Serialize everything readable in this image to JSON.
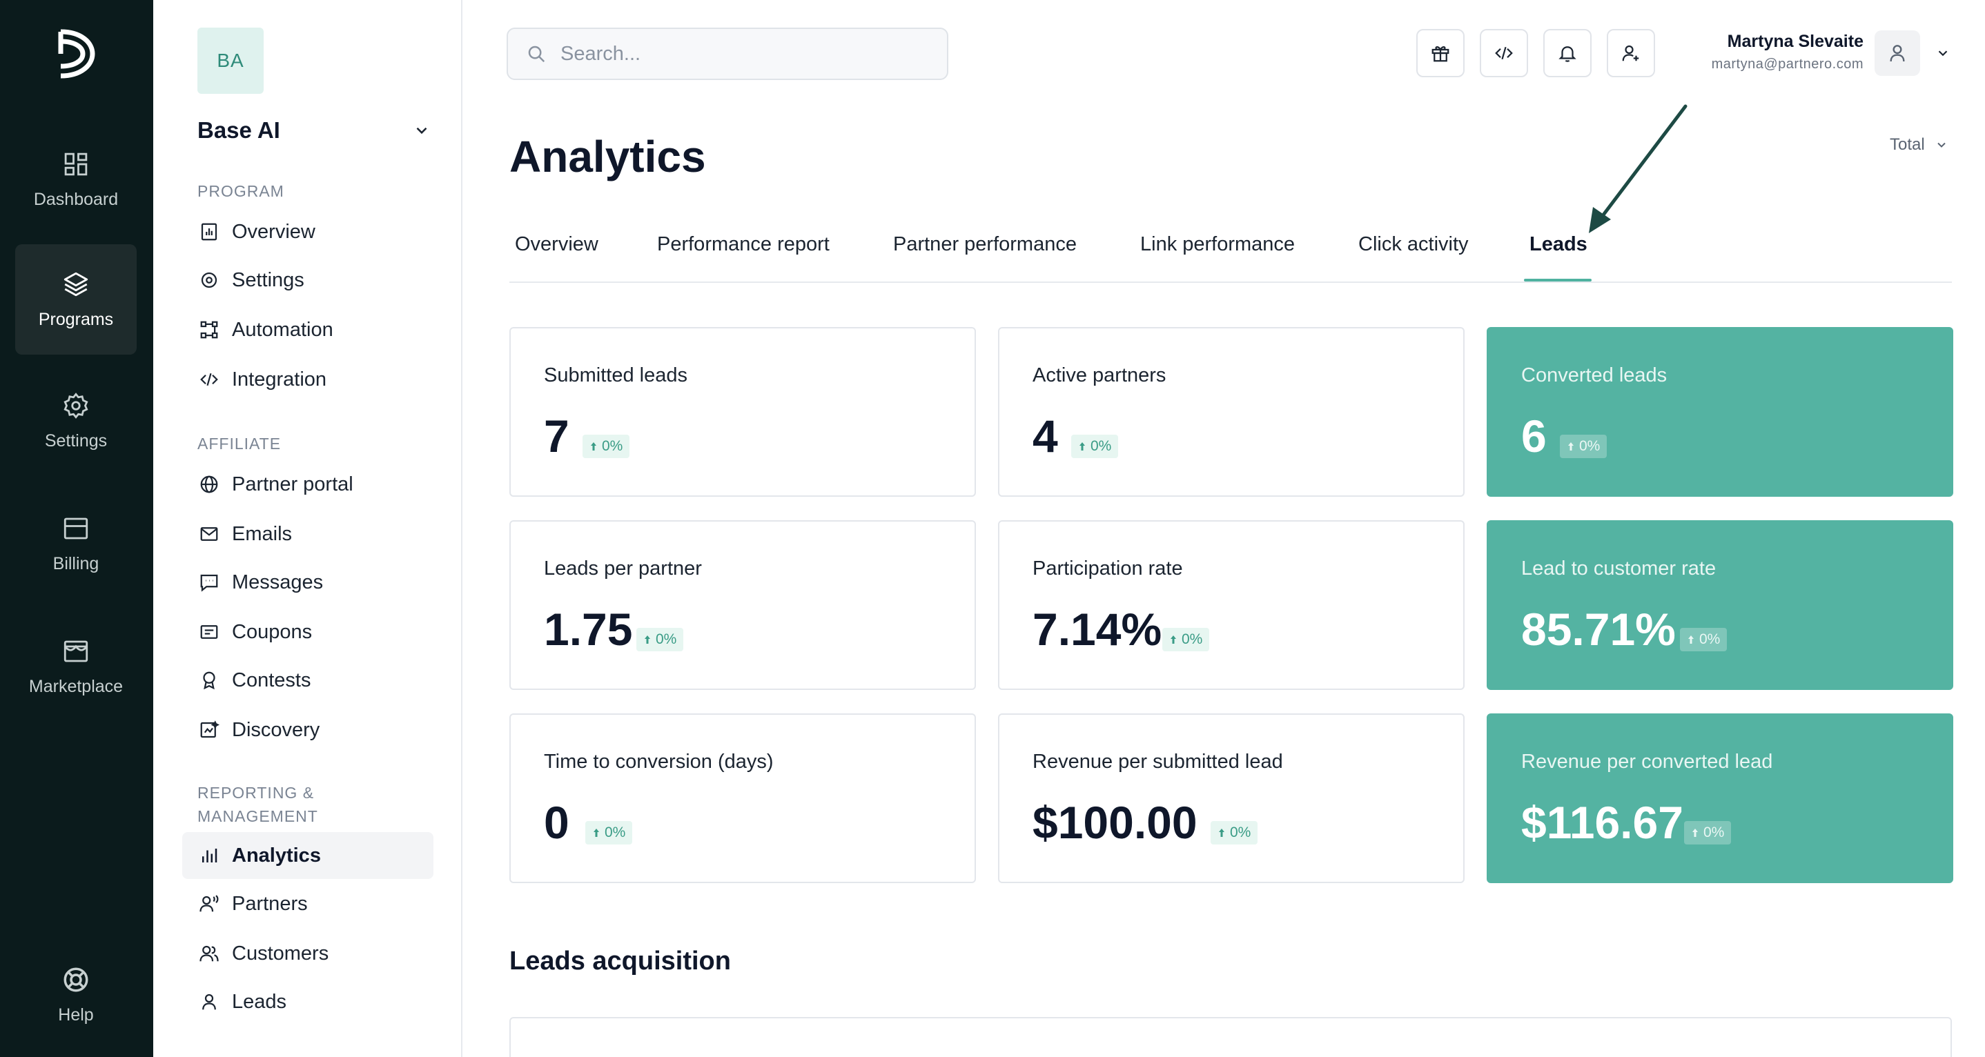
{
  "rail": {
    "items": [
      {
        "label": "Dashboard"
      },
      {
        "label": "Programs"
      },
      {
        "label": "Settings"
      },
      {
        "label": "Billing"
      },
      {
        "label": "Marketplace"
      },
      {
        "label": "Help"
      }
    ]
  },
  "sidebar": {
    "org_initials": "BA",
    "org_name": "Base AI",
    "sections": {
      "program": "PROGRAM",
      "affiliate": "AFFILIATE",
      "reporting": "REPORTING & MANAGEMENT"
    },
    "program_items": [
      "Overview",
      "Settings",
      "Automation",
      "Integration"
    ],
    "affiliate_items": [
      "Partner portal",
      "Emails",
      "Messages",
      "Coupons",
      "Contests",
      "Discovery"
    ],
    "reporting_items": [
      "Analytics",
      "Partners",
      "Customers",
      "Leads"
    ]
  },
  "header": {
    "search_placeholder": "Search...",
    "user_name": "Martyna Slevaite",
    "user_email": "martyna@partnero.com"
  },
  "page": {
    "title": "Analytics",
    "period": "Total",
    "tabs": [
      "Overview",
      "Performance report",
      "Partner performance",
      "Link performance",
      "Click activity",
      "Leads"
    ],
    "active_tab": "Leads"
  },
  "metrics": [
    {
      "label": "Submitted leads",
      "value": "7",
      "delta": "0%",
      "accent": false
    },
    {
      "label": "Active partners",
      "value": "4",
      "delta": "0%",
      "accent": false
    },
    {
      "label": "Converted leads",
      "value": "6",
      "delta": "0%",
      "accent": true
    },
    {
      "label": "Leads per partner",
      "value": "1.75",
      "delta": "0%",
      "accent": false
    },
    {
      "label": "Participation rate",
      "value": "7.14%",
      "delta": "0%",
      "accent": false
    },
    {
      "label": "Lead to customer rate",
      "value": "85.71%",
      "delta": "0%",
      "accent": true
    },
    {
      "label": "Time to conversion (days)",
      "value": "0",
      "delta": "0%",
      "accent": false
    },
    {
      "label": "Revenue per submitted lead",
      "value": "$100.00",
      "delta": "0%",
      "accent": false
    },
    {
      "label": "Revenue per converted lead",
      "value": "$116.67",
      "delta": "0%",
      "accent": true
    }
  ],
  "sections": {
    "leads_acquisition": "Leads acquisition"
  },
  "colors": {
    "rail_bg": "#0b1b1c",
    "accent": "#54b3a2",
    "tab_underline": "#4fb2a0",
    "delta_text": "#3a9c86"
  }
}
